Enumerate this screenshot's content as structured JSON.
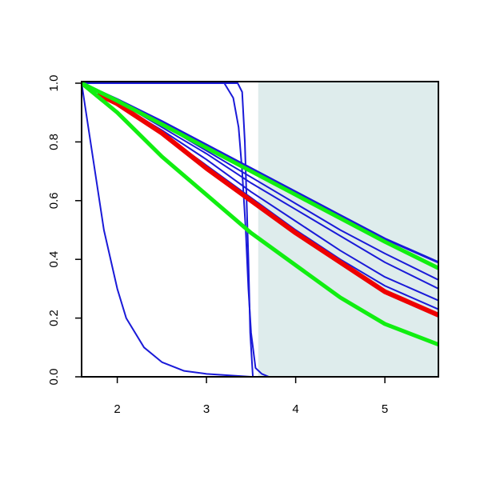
{
  "chart_data": {
    "type": "line",
    "xlim": [
      1.6,
      5.6
    ],
    "ylim": [
      0,
      1
    ],
    "xticks": [
      2,
      3,
      4,
      5
    ],
    "yticks": [
      {
        "value": 0,
        "label": "0.0"
      },
      0.2,
      0.4,
      0.6,
      0.8,
      {
        "value": 1,
        "label": "1.0"
      }
    ],
    "shaded_span": {
      "x": [
        3.58,
        5.6
      ],
      "color": "#deecec"
    },
    "series": [
      {
        "color": "#1a1ad8",
        "line_width": 2,
        "x": [
          1.6,
          1.7,
          1.85,
          2.0,
          2.1,
          2.3,
          2.5,
          2.75,
          3.0,
          3.5,
          5.6
        ],
        "values": [
          1,
          0.8,
          0.5,
          0.3,
          0.2,
          0.1,
          0.05,
          0.02,
          0.01,
          0,
          0
        ]
      },
      {
        "color": "#1a1ad8",
        "line_width": 2,
        "x": [
          1.6,
          3.2,
          3.3,
          3.36,
          3.4,
          3.44,
          3.47,
          3.5,
          3.55,
          3.62,
          3.7,
          5.6
        ],
        "values": [
          1,
          1,
          0.95,
          0.85,
          0.7,
          0.5,
          0.3,
          0.15,
          0.03,
          0.01,
          0,
          0
        ]
      },
      {
        "color": "#1a1ad8",
        "line_width": 2,
        "x": [
          1.6,
          3.35,
          3.4,
          3.43,
          3.45,
          3.47,
          3.49,
          3.52,
          5.6
        ],
        "values": [
          1,
          1,
          0.97,
          0.8,
          0.6,
          0.4,
          0.15,
          0,
          0
        ]
      },
      {
        "color": "#1a1ad8",
        "line_width": 2,
        "x": [
          1.6,
          2,
          2.5,
          3,
          3.5,
          4,
          4.5,
          5,
          5.6
        ],
        "values": [
          1,
          0.93,
          0.83,
          0.72,
          0.61,
          0.5,
          0.4,
          0.31,
          0.23
        ]
      },
      {
        "color": "#1a1ad8",
        "line_width": 2,
        "x": [
          1.6,
          2,
          2.5,
          3,
          3.5,
          4,
          4.5,
          5,
          5.6
        ],
        "values": [
          1,
          0.93,
          0.84,
          0.74,
          0.63,
          0.53,
          0.43,
          0.34,
          0.26
        ]
      },
      {
        "color": "#1a1ad8",
        "line_width": 2,
        "x": [
          1.6,
          2,
          2.5,
          3,
          3.5,
          4,
          4.5,
          5,
          5.6
        ],
        "values": [
          1,
          0.94,
          0.85,
          0.76,
          0.66,
          0.57,
          0.48,
          0.39,
          0.3
        ]
      },
      {
        "color": "#1a1ad8",
        "line_width": 2,
        "x": [
          1.6,
          2,
          2.5,
          3,
          3.5,
          4,
          4.5,
          5,
          5.6
        ],
        "values": [
          1,
          0.94,
          0.86,
          0.77,
          0.68,
          0.59,
          0.5,
          0.42,
          0.33
        ]
      },
      {
        "color": "#1a1ad8",
        "line_width": 3,
        "x": [
          1.6,
          2,
          2.5,
          3,
          3.5,
          4,
          4.5,
          5,
          5.6
        ],
        "values": [
          1,
          0.945,
          0.87,
          0.79,
          0.71,
          0.63,
          0.55,
          0.47,
          0.39
        ]
      },
      {
        "color": "#ee0000",
        "line_width": 6,
        "x": [
          1.8,
          2,
          2.5,
          3,
          3.5,
          4,
          4.5,
          5,
          5.6
        ],
        "values": [
          0.96,
          0.93,
          0.83,
          0.71,
          0.6,
          0.49,
          0.39,
          0.29,
          0.21
        ]
      },
      {
        "color": "#11ee11",
        "line_width": 5,
        "x": [
          1.6,
          2,
          2.5,
          3,
          3.5,
          4,
          4.5,
          5,
          5.6
        ],
        "values": [
          1,
          0.94,
          0.86,
          0.78,
          0.7,
          0.62,
          0.54,
          0.46,
          0.37
        ]
      },
      {
        "color": "#11ee11",
        "line_width": 5,
        "x": [
          1.6,
          2,
          2.5,
          3,
          3.5,
          4,
          4.5,
          5,
          5.6
        ],
        "values": [
          1,
          0.9,
          0.75,
          0.62,
          0.49,
          0.38,
          0.27,
          0.18,
          0.11
        ]
      }
    ]
  }
}
